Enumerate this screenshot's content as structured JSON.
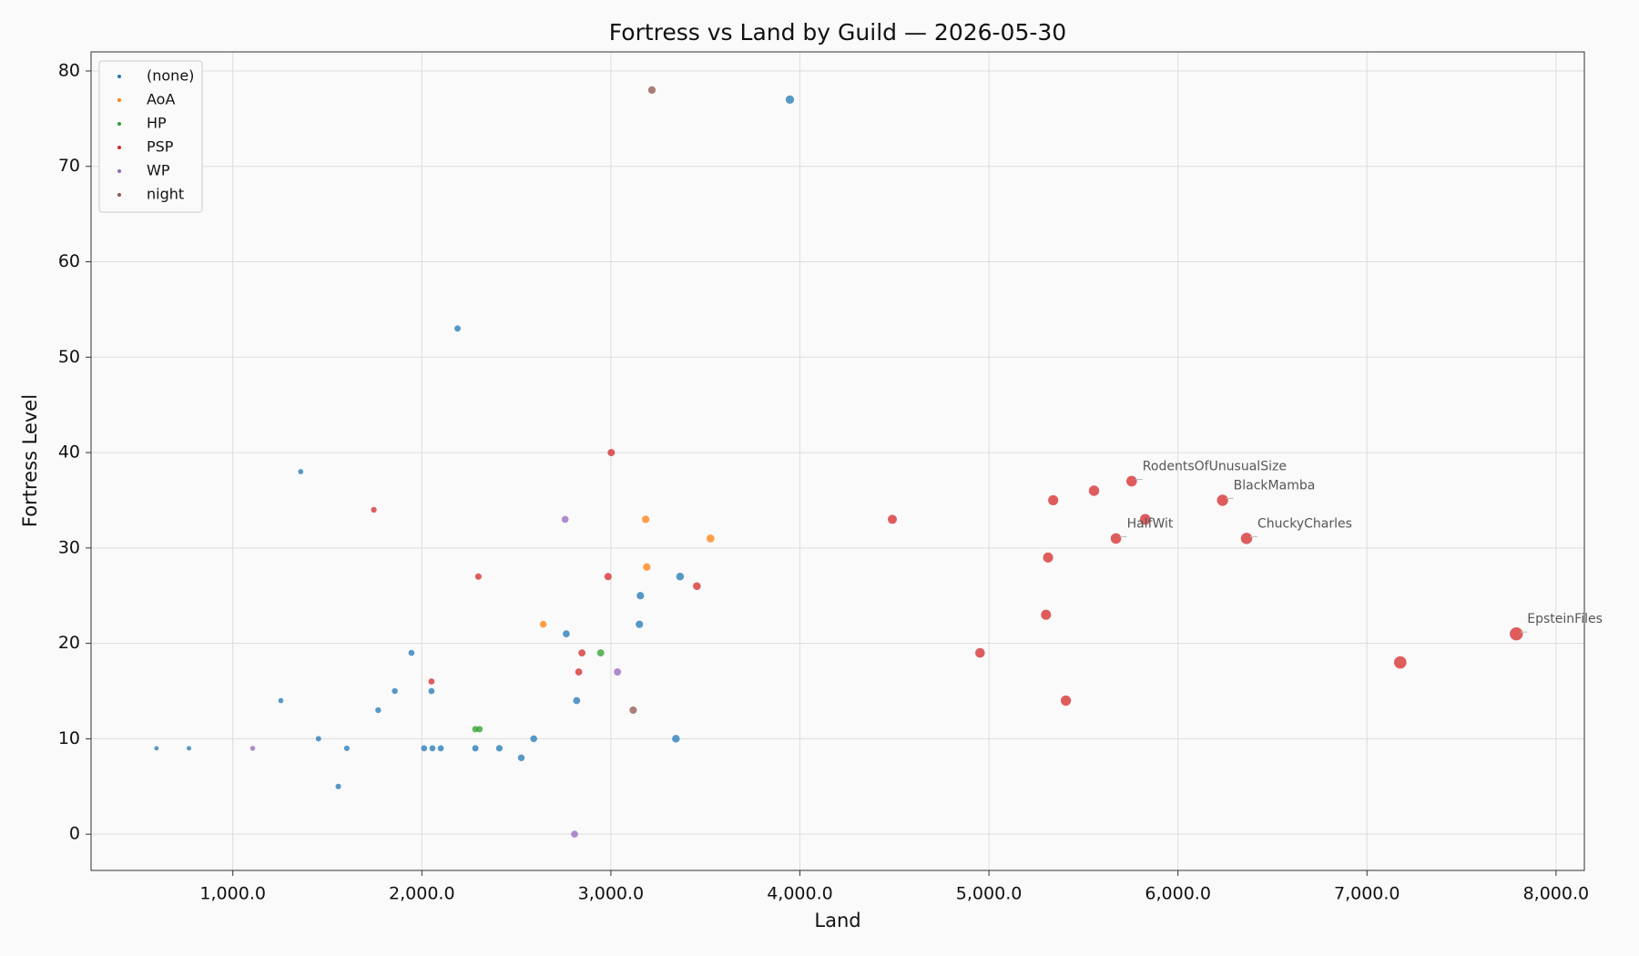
{
  "chart_data": {
    "type": "scatter",
    "title": "Fortress vs Land by Guild — 2026-05-30",
    "xlabel": "Land",
    "ylabel": "Fortress Level",
    "xlim": [
      250,
      8150
    ],
    "ylim": [
      -3.8,
      82
    ],
    "xticks": [
      {
        "value": 1000,
        "label": "1,000.0"
      },
      {
        "value": 2000,
        "label": "2,000.0"
      },
      {
        "value": 3000,
        "label": "3,000.0"
      },
      {
        "value": 4000,
        "label": "4,000.0"
      },
      {
        "value": 5000,
        "label": "5,000.0"
      },
      {
        "value": 6000,
        "label": "6,000.0"
      },
      {
        "value": 7000,
        "label": "7,000.0"
      },
      {
        "value": 8000,
        "label": "8,000.0"
      }
    ],
    "yticks": [
      0,
      10,
      20,
      30,
      40,
      50,
      60,
      70,
      80
    ],
    "grid": true,
    "legend": "upper-left",
    "series": [
      {
        "name": "(none)",
        "color": "#1f77b4",
        "x": [
          596,
          768,
          1254,
          1359,
          1453,
          1558,
          1603,
          1769,
          1857,
          1945,
          2012,
          2051,
          2056,
          2100,
          2189,
          2283,
          2410,
          2526,
          2592,
          2764,
          2819,
          3151,
          3156,
          3344,
          3366,
          3947
        ],
        "values": [
          9,
          9,
          14,
          38,
          10,
          5,
          9,
          13,
          15,
          19,
          9,
          15,
          9,
          9,
          53,
          9,
          9,
          8,
          10,
          21,
          14,
          22,
          25,
          10,
          27,
          77
        ]
      },
      {
        "name": "AoA",
        "color": "#ff7f0e",
        "x": [
          2642,
          3184,
          3190,
          3527
        ],
        "values": [
          22,
          33,
          28,
          31
        ]
      },
      {
        "name": "HP",
        "color": "#2ca02c",
        "x": [
          2283,
          2305,
          2946
        ],
        "values": [
          11,
          11,
          19
        ]
      },
      {
        "name": "PSP",
        "color": "#d62728",
        "x": [
          1746,
          2051,
          2299,
          2830,
          2847,
          2985,
          3002,
          3455,
          4489,
          4953,
          5302,
          5313,
          5340,
          5407,
          5556,
          5672,
          5755,
          5827,
          6236,
          6363,
          7176,
          7790
        ],
        "values": [
          34,
          16,
          27,
          17,
          19,
          27,
          40,
          26,
          33,
          19,
          23,
          29,
          35,
          14,
          36,
          31,
          37,
          33,
          35,
          31,
          18,
          21
        ]
      },
      {
        "name": "WP",
        "color": "#9467bd",
        "x": [
          1105,
          2758,
          2808,
          3035
        ],
        "values": [
          9,
          33,
          0,
          17
        ]
      },
      {
        "name": "night",
        "color": "#8c564b",
        "x": [
          3118,
          3217
        ],
        "values": [
          13,
          78
        ]
      }
    ],
    "annotations": [
      {
        "text": "RodentsOfUnusualSize",
        "x": 5755,
        "y": 37
      },
      {
        "text": "BlackMamba",
        "x": 6236,
        "y": 35
      },
      {
        "text": "HalfWit",
        "x": 5672,
        "y": 31
      },
      {
        "text": "ChuckyCharles",
        "x": 6363,
        "y": 31
      },
      {
        "text": "EpsteinFiles",
        "x": 7790,
        "y": 21
      }
    ]
  }
}
